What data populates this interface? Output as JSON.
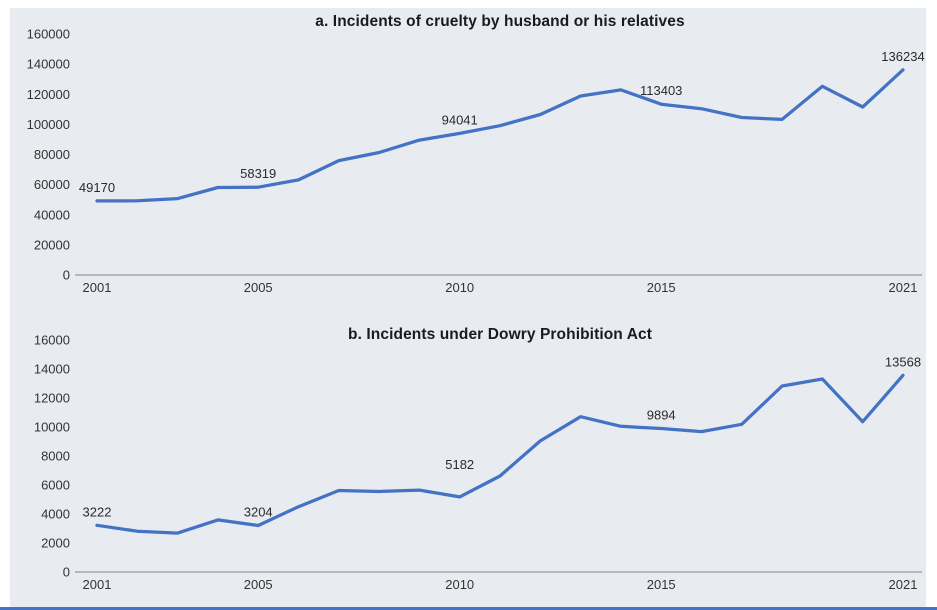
{
  "figure": {
    "background": "#ffffff",
    "panel_background": "#e8ecf1",
    "bottom_border_color": "#4472c4",
    "axis_color": "#b3b8c0",
    "tick_text_color": "#333333",
    "title_color": "#1a1a24"
  },
  "chart_data": [
    {
      "type": "line",
      "title": "a. Incidents of cruelty by husband or his relatives",
      "line_color": "#4472c4",
      "xlabel": "",
      "ylabel": "",
      "grid": false,
      "legend": "none",
      "x": [
        2001,
        2002,
        2003,
        2004,
        2005,
        2006,
        2007,
        2008,
        2009,
        2010,
        2011,
        2012,
        2013,
        2014,
        2015,
        2016,
        2017,
        2018,
        2019,
        2020,
        2021
      ],
      "values": [
        49170,
        49237,
        50703,
        58121,
        58319,
        63128,
        75930,
        81344,
        89546,
        94041,
        99135,
        106527,
        118866,
        122877,
        113403,
        110378,
        104551,
        103272,
        125298,
        111549,
        136234
      ],
      "x_ticks": [
        2001,
        2005,
        2010,
        2015,
        2021
      ],
      "y_ticks": [
        0,
        20000,
        40000,
        60000,
        80000,
        100000,
        120000,
        140000,
        160000
      ],
      "xlim": [
        2001,
        2021
      ],
      "ylim": [
        0,
        160000
      ],
      "point_labels": [
        {
          "x": 2001,
          "text": "49170"
        },
        {
          "x": 2005,
          "text": "58319"
        },
        {
          "x": 2010,
          "text": "94041"
        },
        {
          "x": 2015,
          "text": "113403"
        },
        {
          "x": 2021,
          "text": "136234"
        }
      ]
    },
    {
      "type": "line",
      "title": "b. Incidents under Dowry Prohibition Act",
      "line_color": "#4472c4",
      "xlabel": "",
      "ylabel": "",
      "grid": false,
      "legend": "none",
      "x": [
        2001,
        2002,
        2003,
        2004,
        2005,
        2006,
        2007,
        2008,
        2009,
        2010,
        2011,
        2012,
        2013,
        2014,
        2015,
        2016,
        2017,
        2018,
        2019,
        2020,
        2021
      ],
      "values": [
        3222,
        2816,
        2684,
        3592,
        3204,
        4504,
        5623,
        5555,
        5650,
        5182,
        6619,
        9038,
        10709,
        10050,
        9894,
        9683,
        10189,
        12826,
        13307,
        10366,
        13568
      ],
      "x_ticks": [
        2001,
        2005,
        2010,
        2015,
        2021
      ],
      "y_ticks": [
        0,
        2000,
        4000,
        6000,
        8000,
        10000,
        12000,
        14000,
        16000
      ],
      "xlim": [
        2001,
        2021
      ],
      "ylim": [
        0,
        16000
      ],
      "point_labels": [
        {
          "x": 2001,
          "text": "3222"
        },
        {
          "x": 2005,
          "text": "3204"
        },
        {
          "x": 2010,
          "text": "5182"
        },
        {
          "x": 2015,
          "text": "9894"
        },
        {
          "x": 2021,
          "text": "13568"
        }
      ]
    }
  ]
}
